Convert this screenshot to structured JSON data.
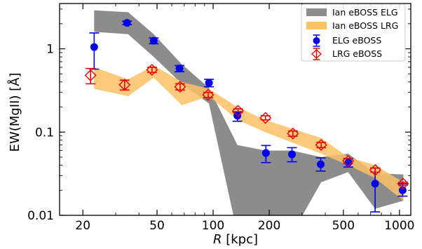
{
  "chart_data": {
    "type": "scatter",
    "title": "",
    "xlabel_italic": "R",
    "xlabel_rest": " [kpc]",
    "ylabel": "EW(MgII) [Å]",
    "xscale": "log",
    "yscale": "log",
    "xlim": [
      15,
      1150
    ],
    "ylim": [
      0.01,
      3.5
    ],
    "x_ticks": [
      20,
      50,
      100,
      200,
      500,
      1000
    ],
    "x_tick_labels": [
      "20",
      "50",
      "100",
      "200",
      "500",
      "1000"
    ],
    "y_ticks": [
      0.01,
      0.1,
      1
    ],
    "y_tick_labels": [
      "0.01",
      "0.1",
      "1"
    ],
    "grid": false,
    "legend_position": "top-right",
    "bands": [
      {
        "name": "Ian eBOSS ELG",
        "color": "#8c8c8c",
        "x": [
          23,
          35,
          48,
          68,
          95,
          135,
          190,
          265,
          380,
          530,
          740,
          1050
        ],
        "lower": [
          1.6,
          1.5,
          0.8,
          0.38,
          0.22,
          0.006,
          0.006,
          0.006,
          0.025,
          0.033,
          0.012,
          0.015
        ],
        "upper": [
          2.9,
          2.75,
          1.5,
          0.65,
          0.34,
          0.07,
          0.06,
          0.06,
          0.05,
          0.055,
          0.032,
          0.031
        ]
      },
      {
        "name": "Ian eBOSS LRG",
        "color": "#fbc165",
        "x": [
          23,
          35,
          48,
          68,
          95,
          135,
          190,
          265,
          380,
          530,
          740,
          1050
        ],
        "lower": [
          0.33,
          0.27,
          0.45,
          0.21,
          0.27,
          0.14,
          0.1,
          0.075,
          0.055,
          0.04,
          0.028,
          0.015
        ],
        "upper": [
          0.6,
          0.43,
          0.63,
          0.4,
          0.33,
          0.2,
          0.14,
          0.11,
          0.085,
          0.05,
          0.04,
          0.025
        ]
      }
    ],
    "series": [
      {
        "name": "ELG eBOSS",
        "color": "#0000ee",
        "marker": "circle",
        "points": [
          {
            "x": 23,
            "y": 1.05,
            "lo": 0.57,
            "hi": 1.55
          },
          {
            "x": 34.5,
            "y": 2.05,
            "lo": 1.95,
            "hi": 2.15
          },
          {
            "x": 48,
            "y": 1.25,
            "lo": 1.15,
            "hi": 1.35
          },
          {
            "x": 66,
            "y": 0.58,
            "lo": 0.53,
            "hi": 0.63
          },
          {
            "x": 95,
            "y": 0.39,
            "lo": 0.35,
            "hi": 0.43
          },
          {
            "x": 135,
            "y": 0.157,
            "lo": 0.135,
            "hi": 0.175
          },
          {
            "x": 192,
            "y": 0.056,
            "lo": 0.043,
            "hi": 0.069
          },
          {
            "x": 265,
            "y": 0.054,
            "lo": 0.044,
            "hi": 0.065
          },
          {
            "x": 378,
            "y": 0.041,
            "lo": 0.034,
            "hi": 0.049
          },
          {
            "x": 532,
            "y": 0.043,
            "lo": 0.038,
            "hi": 0.048
          },
          {
            "x": 740,
            "y": 0.024,
            "lo": 0.011,
            "hi": 0.037
          },
          {
            "x": 1040,
            "y": 0.02,
            "lo": 0.017,
            "hi": 0.024
          }
        ]
      },
      {
        "name": "LRG eBOSS",
        "color": "#ee0000",
        "marker": "diamond",
        "points": [
          {
            "x": 22,
            "y": 0.48,
            "lo": 0.38,
            "hi": 0.58
          },
          {
            "x": 33.5,
            "y": 0.37,
            "lo": 0.32,
            "hi": 0.42
          },
          {
            "x": 47,
            "y": 0.56,
            "lo": 0.52,
            "hi": 0.6
          },
          {
            "x": 66.5,
            "y": 0.35,
            "lo": 0.32,
            "hi": 0.38
          },
          {
            "x": 94,
            "y": 0.28,
            "lo": 0.26,
            "hi": 0.3
          },
          {
            "x": 136,
            "y": 0.18,
            "lo": 0.17,
            "hi": 0.19
          },
          {
            "x": 191,
            "y": 0.148,
            "lo": 0.14,
            "hi": 0.157
          },
          {
            "x": 268,
            "y": 0.096,
            "lo": 0.089,
            "hi": 0.103
          },
          {
            "x": 380,
            "y": 0.07,
            "lo": 0.065,
            "hi": 0.075
          },
          {
            "x": 530,
            "y": 0.045,
            "lo": 0.042,
            "hi": 0.048
          },
          {
            "x": 742,
            "y": 0.035,
            "lo": 0.033,
            "hi": 0.037
          },
          {
            "x": 1045,
            "y": 0.024,
            "lo": 0.023,
            "hi": 0.025
          }
        ]
      }
    ]
  }
}
